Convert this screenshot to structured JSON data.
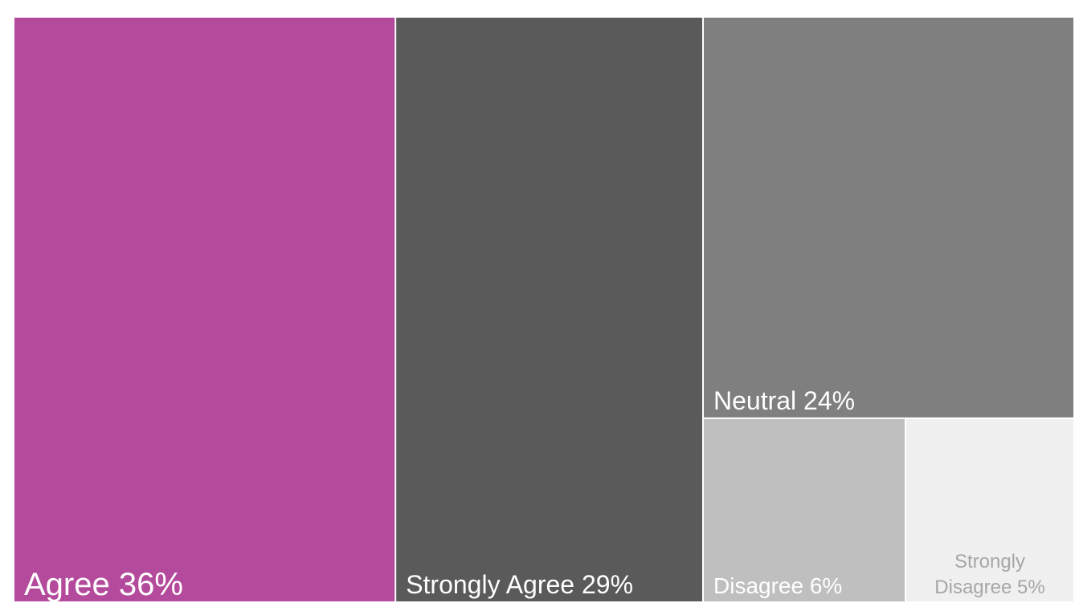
{
  "chart_data": {
    "type": "treemap",
    "title": "",
    "items": [
      {
        "label": "Agree 36%",
        "category": "Agree",
        "value": 36,
        "color": "#b44a9c",
        "text_color": "#ffffff"
      },
      {
        "label": "Strongly Agree 29%",
        "category": "Strongly Agree",
        "value": 29,
        "color": "#5a5a5a",
        "text_color": "#ffffff"
      },
      {
        "label": "Neutral 24%",
        "category": "Neutral",
        "value": 24,
        "color": "#7f7f7f",
        "text_color": "#ffffff"
      },
      {
        "label": "Disagree 6%",
        "category": "Disagree",
        "value": 6,
        "color": "#bfbfbf",
        "text_color": "#ffffff"
      },
      {
        "label_lines": [
          "Strongly",
          "Disagree 5%"
        ],
        "category": "Strongly Disagree",
        "value": 5,
        "color": "#f0f0f0",
        "text_color": "#a6a6a6"
      }
    ]
  }
}
